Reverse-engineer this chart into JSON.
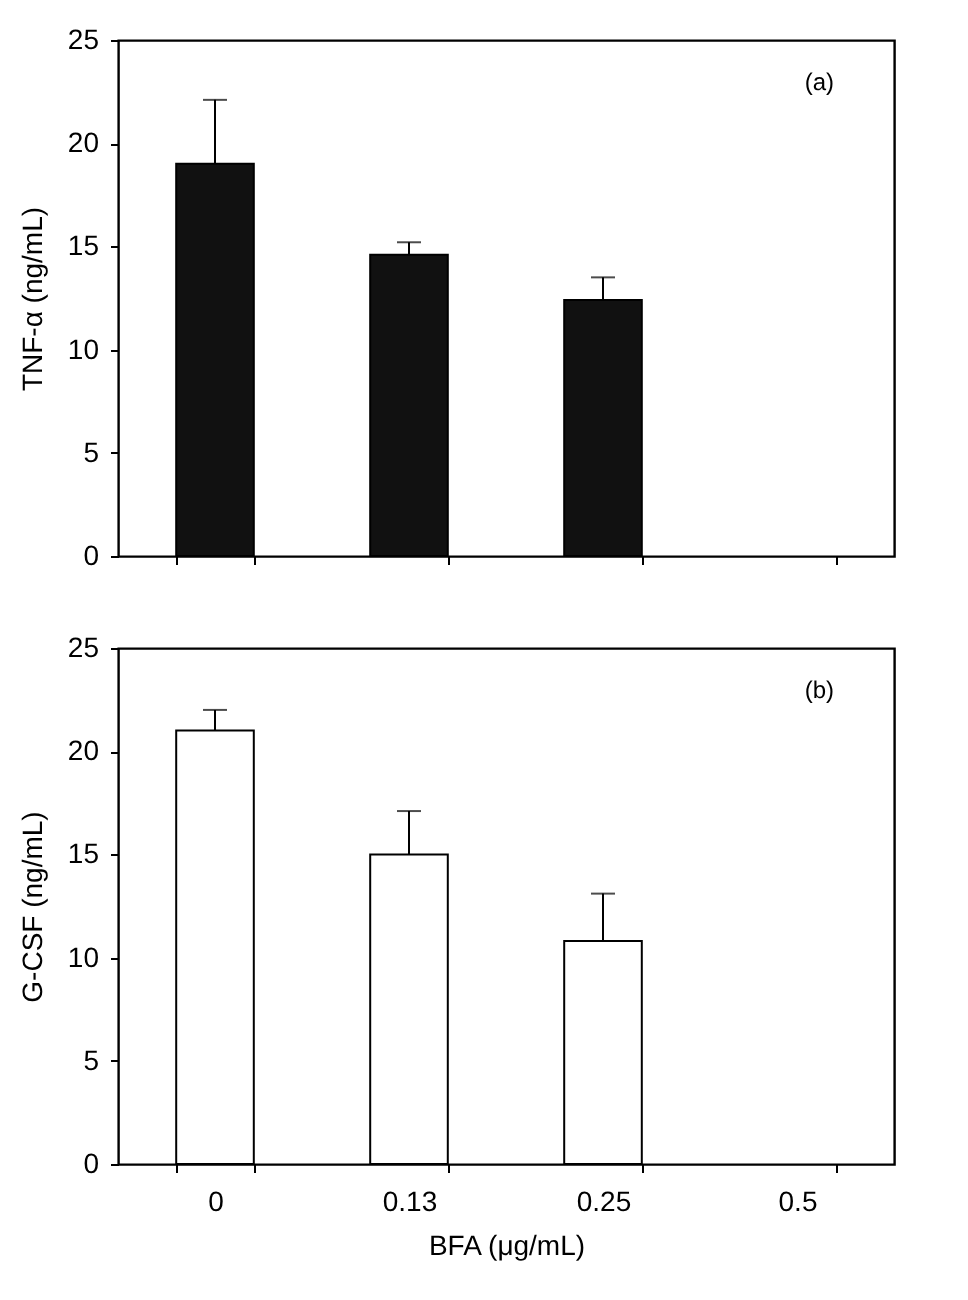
{
  "chart_data": [
    {
      "type": "bar",
      "ylabel": "TNF-α (ng/mL)",
      "annotations": [
        "(a)"
      ],
      "categories": [
        "0",
        "0.13",
        "0.25",
        "0.5"
      ],
      "tick_labels": "y",
      "series": [
        {
          "color": "#111111",
          "values": [
            19.0,
            14.6,
            12.4,
            0
          ],
          "errors": [
            [
              19.0,
              22.1
            ],
            [
              14.6,
              15.2
            ],
            [
              12.4,
              13.5
            ],
            null
          ]
        }
      ],
      "ylim": [
        0,
        25
      ],
      "yticks": [
        0,
        5,
        10,
        15,
        20,
        25
      ]
    },
    {
      "type": "bar",
      "ylabel": "G-CSF (ng/mL)",
      "xlabel": "BFA (μg/mL)",
      "annotations": [
        "(b)"
      ],
      "categories": [
        "0",
        "0.13",
        "0.25",
        "0.5"
      ],
      "series": [
        {
          "color": "#ffffff",
          "values": [
            21.0,
            15.0,
            10.8,
            0
          ],
          "errors": [
            [
              21.0,
              22.0
            ],
            [
              15.0,
              17.1
            ],
            [
              10.8,
              13.1
            ],
            null
          ]
        }
      ],
      "ylim": [
        0,
        25
      ],
      "yticks": [
        0,
        5,
        10,
        15,
        20,
        25
      ]
    }
  ]
}
